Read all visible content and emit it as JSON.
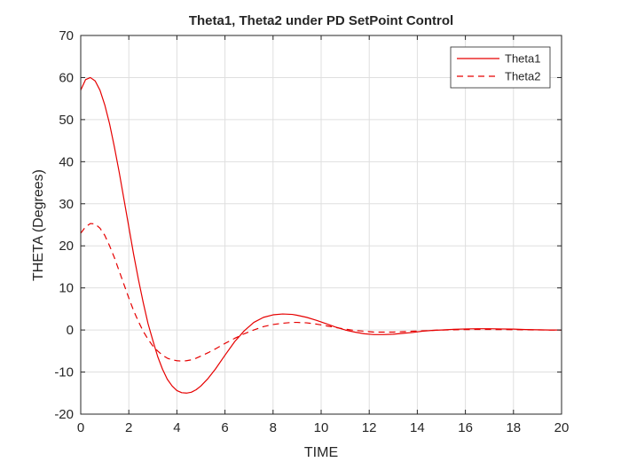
{
  "chart_data": {
    "type": "line",
    "title": "Theta1, Theta2 under PD SetPoint Control",
    "xlabel": "TIME",
    "ylabel": "THETA (Degrees)",
    "xlim": [
      0,
      20
    ],
    "ylim": [
      -20,
      70
    ],
    "xticks": [
      0,
      2,
      4,
      6,
      8,
      10,
      12,
      14,
      16,
      18,
      20
    ],
    "yticks": [
      -20,
      -10,
      0,
      10,
      20,
      30,
      40,
      50,
      60,
      70
    ],
    "grid": true,
    "legend": {
      "placement": "top-right"
    },
    "colors": {
      "series": "#e60000",
      "grid": "#dfdfdf",
      "axes": "#262626"
    },
    "series": [
      {
        "name": "Theta1",
        "style": "solid",
        "x": [
          0,
          0.2,
          0.4,
          0.6,
          0.8,
          1.0,
          1.2,
          1.4,
          1.6,
          1.8,
          2.0,
          2.2,
          2.4,
          2.6,
          2.8,
          3.0,
          3.2,
          3.4,
          3.6,
          3.8,
          4.0,
          4.2,
          4.4,
          4.6,
          4.8,
          5.0,
          5.3,
          5.6,
          6.0,
          6.4,
          6.8,
          7.2,
          7.6,
          8.0,
          8.4,
          8.8,
          9.0,
          9.4,
          9.8,
          10.2,
          10.6,
          11.0,
          11.4,
          11.8,
          12.2,
          12.6,
          13.0,
          13.4,
          13.8,
          14.2,
          14.6,
          15.0,
          15.5,
          16.0,
          16.5,
          17.0,
          17.5,
          18.0,
          18.5,
          19.0,
          19.5,
          20.0
        ],
        "y": [
          57.0,
          59.5,
          60.0,
          59.2,
          57.0,
          53.5,
          49.0,
          43.5,
          37.5,
          31.0,
          24.5,
          18.0,
          12.0,
          6.5,
          1.5,
          -2.5,
          -6.3,
          -9.3,
          -11.7,
          -13.3,
          -14.4,
          -14.9,
          -15.0,
          -14.8,
          -14.2,
          -13.3,
          -11.5,
          -9.3,
          -6.0,
          -2.8,
          -0.2,
          1.8,
          3.0,
          3.6,
          3.8,
          3.7,
          3.5,
          3.0,
          2.3,
          1.5,
          0.7,
          0.0,
          -0.5,
          -0.9,
          -1.1,
          -1.1,
          -1.0,
          -0.8,
          -0.6,
          -0.3,
          -0.1,
          0.0,
          0.15,
          0.25,
          0.3,
          0.3,
          0.25,
          0.2,
          0.1,
          0.05,
          0.0,
          0.0
        ]
      },
      {
        "name": "Theta2",
        "style": "dashed",
        "x": [
          0,
          0.2,
          0.4,
          0.6,
          0.8,
          1.0,
          1.2,
          1.4,
          1.6,
          1.8,
          2.0,
          2.2,
          2.4,
          2.6,
          2.8,
          3.0,
          3.2,
          3.4,
          3.6,
          3.8,
          4.0,
          4.2,
          4.4,
          4.6,
          4.8,
          5.0,
          5.3,
          5.6,
          6.0,
          6.4,
          6.8,
          7.2,
          7.6,
          8.0,
          8.4,
          8.8,
          9.0,
          9.4,
          9.8,
          10.2,
          10.6,
          11.0,
          11.4,
          11.8,
          12.2,
          12.6,
          13.0,
          13.4,
          13.8,
          14.2,
          14.6,
          15.0,
          15.5,
          16.0,
          16.5,
          17.0,
          17.5,
          18.0,
          18.5,
          19.0,
          19.5,
          20.0
        ],
        "y": [
          23.0,
          24.5,
          25.3,
          25.2,
          24.2,
          22.5,
          20.0,
          17.2,
          14.0,
          10.8,
          7.6,
          4.6,
          2.0,
          -0.3,
          -2.2,
          -3.8,
          -5.0,
          -6.0,
          -6.7,
          -7.1,
          -7.3,
          -7.4,
          -7.3,
          -7.1,
          -6.7,
          -6.2,
          -5.4,
          -4.5,
          -3.2,
          -2.0,
          -0.9,
          0.0,
          0.8,
          1.3,
          1.6,
          1.8,
          1.8,
          1.7,
          1.4,
          1.0,
          0.6,
          0.2,
          -0.1,
          -0.3,
          -0.5,
          -0.5,
          -0.5,
          -0.4,
          -0.3,
          -0.2,
          -0.1,
          0.0,
          0.05,
          0.1,
          0.12,
          0.12,
          0.1,
          0.08,
          0.05,
          0.02,
          0.0,
          0.0
        ]
      }
    ]
  }
}
